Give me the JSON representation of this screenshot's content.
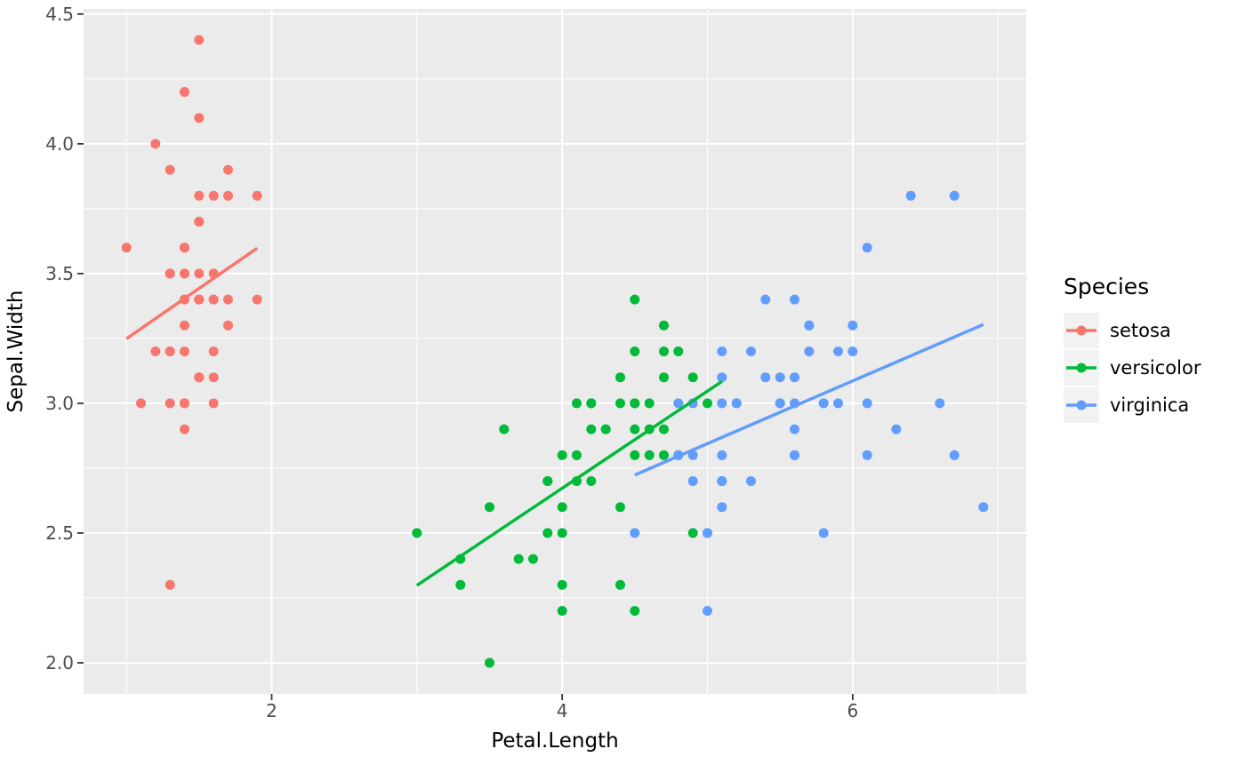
{
  "legend": {
    "title": "Species",
    "entries": [
      {
        "label": "setosa",
        "color": "#F8766D"
      },
      {
        "label": "versicolor",
        "color": "#00BA38"
      },
      {
        "label": "virginica",
        "color": "#619CFF"
      }
    ]
  },
  "colors": {
    "panel_bg": "#EBEBEB",
    "grid": "#FFFFFF",
    "tick_mark": "#333333",
    "axis_text": "#4D4D4D",
    "legend_key_bg": "#F2F2F2",
    "overall_smooth": "#000000"
  },
  "chart_data": {
    "type": "scatter",
    "title": "",
    "xlabel": "Petal.Length",
    "ylabel": "Sepal.Width",
    "xlim": [
      0.705,
      7.195
    ],
    "ylim": [
      1.88,
      4.52
    ],
    "grid": true,
    "legend_position": "right",
    "x_ticks": {
      "values": [
        2,
        4,
        6
      ],
      "labels": [
        "2",
        "4",
        "6"
      ],
      "minor": [
        1,
        3,
        5,
        7
      ]
    },
    "y_ticks": {
      "values": [
        2.0,
        2.5,
        3.0,
        3.5,
        4.0,
        4.5
      ],
      "labels": [
        "2.0",
        "2.5",
        "3.0",
        "3.5",
        "4.0",
        "4.5"
      ],
      "minor": [
        2.25,
        2.75,
        3.25,
        3.75,
        4.25
      ]
    },
    "smoothers": [
      {
        "method": "loess",
        "scope": "per_species",
        "linetype": "dotted",
        "se": false,
        "width": 3
      },
      {
        "method": "lm",
        "scope": "per_species",
        "linetype": "solid",
        "se": false,
        "width": 3.5
      },
      {
        "method": "loess",
        "scope": "overall",
        "linetype": "solid",
        "se": false,
        "color": "#000000",
        "width": 4.5
      }
    ],
    "series": [
      {
        "name": "setosa",
        "color": "#F8766D",
        "points": [
          [
            1.4,
            3.5
          ],
          [
            1.4,
            3.0
          ],
          [
            1.3,
            3.2
          ],
          [
            1.5,
            3.1
          ],
          [
            1.4,
            3.6
          ],
          [
            1.7,
            3.9
          ],
          [
            1.4,
            3.4
          ],
          [
            1.5,
            3.4
          ],
          [
            1.4,
            2.9
          ],
          [
            1.5,
            3.1
          ],
          [
            1.5,
            3.7
          ],
          [
            1.6,
            3.4
          ],
          [
            1.4,
            3.0
          ],
          [
            1.1,
            3.0
          ],
          [
            1.2,
            4.0
          ],
          [
            1.5,
            4.4
          ],
          [
            1.3,
            3.9
          ],
          [
            1.4,
            3.5
          ],
          [
            1.7,
            3.8
          ],
          [
            1.5,
            3.8
          ],
          [
            1.7,
            3.4
          ],
          [
            1.5,
            3.7
          ],
          [
            1.0,
            3.6
          ],
          [
            1.7,
            3.3
          ],
          [
            1.9,
            3.4
          ],
          [
            1.6,
            3.0
          ],
          [
            1.6,
            3.4
          ],
          [
            1.5,
            3.5
          ],
          [
            1.4,
            3.4
          ],
          [
            1.6,
            3.2
          ],
          [
            1.6,
            3.1
          ],
          [
            1.5,
            3.4
          ],
          [
            1.5,
            4.1
          ],
          [
            1.4,
            4.2
          ],
          [
            1.5,
            3.1
          ],
          [
            1.2,
            3.2
          ],
          [
            1.3,
            3.5
          ],
          [
            1.4,
            3.6
          ],
          [
            1.3,
            3.0
          ],
          [
            1.5,
            3.4
          ],
          [
            1.3,
            3.5
          ],
          [
            1.3,
            2.3
          ],
          [
            1.3,
            3.2
          ],
          [
            1.6,
            3.5
          ],
          [
            1.9,
            3.8
          ],
          [
            1.4,
            3.0
          ],
          [
            1.6,
            3.8
          ],
          [
            1.4,
            3.2
          ],
          [
            1.5,
            3.7
          ],
          [
            1.4,
            3.3
          ]
        ]
      },
      {
        "name": "versicolor",
        "color": "#00BA38",
        "points": [
          [
            4.7,
            3.2
          ],
          [
            4.5,
            3.2
          ],
          [
            4.9,
            3.1
          ],
          [
            4.0,
            2.3
          ],
          [
            4.6,
            2.8
          ],
          [
            4.5,
            2.8
          ],
          [
            4.7,
            3.3
          ],
          [
            3.3,
            2.4
          ],
          [
            4.6,
            2.9
          ],
          [
            3.9,
            2.7
          ],
          [
            3.5,
            2.0
          ],
          [
            4.2,
            3.0
          ],
          [
            4.0,
            2.2
          ],
          [
            4.7,
            2.9
          ],
          [
            3.6,
            2.9
          ],
          [
            4.4,
            3.1
          ],
          [
            4.5,
            3.0
          ],
          [
            4.1,
            2.7
          ],
          [
            4.5,
            2.2
          ],
          [
            3.9,
            2.5
          ],
          [
            4.8,
            3.2
          ],
          [
            4.0,
            2.8
          ],
          [
            4.9,
            2.5
          ],
          [
            4.7,
            2.8
          ],
          [
            4.3,
            2.9
          ],
          [
            4.4,
            3.0
          ],
          [
            4.8,
            2.8
          ],
          [
            5.0,
            3.0
          ],
          [
            4.5,
            2.9
          ],
          [
            3.5,
            2.6
          ],
          [
            3.8,
            2.4
          ],
          [
            3.7,
            2.4
          ],
          [
            3.9,
            2.7
          ],
          [
            5.1,
            2.7
          ],
          [
            4.5,
            3.0
          ],
          [
            4.5,
            3.4
          ],
          [
            4.7,
            3.1
          ],
          [
            4.4,
            2.3
          ],
          [
            4.1,
            3.0
          ],
          [
            4.0,
            2.5
          ],
          [
            4.4,
            2.6
          ],
          [
            4.6,
            3.0
          ],
          [
            4.0,
            2.6
          ],
          [
            3.3,
            2.3
          ],
          [
            4.2,
            2.7
          ],
          [
            4.2,
            3.0
          ],
          [
            4.2,
            2.9
          ],
          [
            4.3,
            2.9
          ],
          [
            3.0,
            2.5
          ],
          [
            4.1,
            2.8
          ]
        ]
      },
      {
        "name": "virginica",
        "color": "#619CFF",
        "points": [
          [
            6.0,
            3.3
          ],
          [
            5.1,
            2.7
          ],
          [
            5.9,
            3.0
          ],
          [
            5.6,
            2.9
          ],
          [
            5.8,
            3.0
          ],
          [
            6.6,
            3.0
          ],
          [
            4.5,
            2.5
          ],
          [
            6.3,
            2.9
          ],
          [
            5.8,
            2.5
          ],
          [
            6.1,
            3.6
          ],
          [
            5.1,
            3.2
          ],
          [
            5.3,
            2.7
          ],
          [
            5.5,
            3.0
          ],
          [
            5.0,
            2.5
          ],
          [
            5.1,
            2.8
          ],
          [
            5.3,
            3.2
          ],
          [
            5.5,
            3.0
          ],
          [
            6.7,
            3.8
          ],
          [
            6.9,
            2.6
          ],
          [
            5.0,
            2.2
          ],
          [
            5.7,
            3.2
          ],
          [
            4.9,
            2.8
          ],
          [
            6.7,
            2.8
          ],
          [
            4.9,
            2.7
          ],
          [
            5.7,
            3.3
          ],
          [
            6.0,
            3.2
          ],
          [
            4.8,
            2.8
          ],
          [
            4.9,
            3.0
          ],
          [
            5.6,
            2.8
          ],
          [
            5.8,
            3.0
          ],
          [
            6.1,
            2.8
          ],
          [
            6.4,
            3.8
          ],
          [
            5.6,
            2.8
          ],
          [
            5.1,
            2.6
          ],
          [
            5.6,
            3.0
          ],
          [
            6.1,
            3.0
          ],
          [
            5.6,
            3.4
          ],
          [
            5.5,
            3.1
          ],
          [
            4.8,
            3.0
          ],
          [
            5.4,
            3.1
          ],
          [
            5.6,
            3.1
          ],
          [
            5.1,
            3.1
          ],
          [
            5.1,
            2.7
          ],
          [
            5.9,
            3.2
          ],
          [
            5.7,
            3.3
          ],
          [
            5.2,
            3.0
          ],
          [
            5.0,
            2.5
          ],
          [
            5.2,
            3.0
          ],
          [
            5.4,
            3.4
          ],
          [
            5.1,
            3.0
          ]
        ]
      }
    ]
  }
}
